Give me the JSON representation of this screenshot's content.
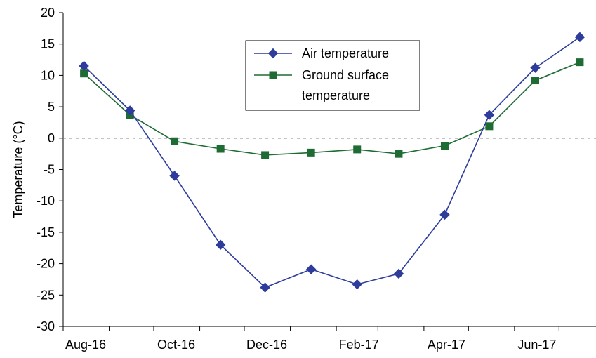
{
  "chart_data": {
    "type": "line",
    "ylabel": "Temperature (°C)",
    "xlabel": "",
    "ylim": [
      -30,
      20
    ],
    "yticks": [
      20,
      15,
      10,
      5,
      0,
      -5,
      -10,
      -15,
      -20,
      -25,
      -30
    ],
    "x_tick_labels": [
      "Aug-16",
      "Oct-16",
      "Dec-16",
      "Feb-17",
      "Apr-17",
      "Jun-17"
    ],
    "zero_reference_line": true,
    "legend_position": "top-center",
    "series": [
      {
        "name": "Air temperature",
        "color": "#2E3C9C",
        "marker": "diamond",
        "points": [
          {
            "x": "2016-08-15",
            "y": 11.5
          },
          {
            "x": "2016-09-15",
            "y": 4.4
          },
          {
            "x": "2016-10-15",
            "y": -6.0
          },
          {
            "x": "2016-11-15",
            "y": -17.0
          },
          {
            "x": "2016-12-15",
            "y": -23.8
          },
          {
            "x": "2017-01-15",
            "y": -20.9
          },
          {
            "x": "2017-02-15",
            "y": -23.3
          },
          {
            "x": "2017-03-15",
            "y": -21.6
          },
          {
            "x": "2017-04-15",
            "y": -12.2
          },
          {
            "x": "2017-05-15",
            "y": 3.7
          },
          {
            "x": "2017-06-15",
            "y": 11.2
          },
          {
            "x": "2017-07-15",
            "y": 16.1
          }
        ]
      },
      {
        "name": "Ground surface temperature",
        "color": "#1E6B34",
        "marker": "square",
        "points": [
          {
            "x": "2016-08-15",
            "y": 10.3
          },
          {
            "x": "2016-09-15",
            "y": 3.7
          },
          {
            "x": "2016-10-15",
            "y": -0.5
          },
          {
            "x": "2016-11-15",
            "y": -1.7
          },
          {
            "x": "2016-12-15",
            "y": -2.7
          },
          {
            "x": "2017-01-15",
            "y": -2.3
          },
          {
            "x": "2017-02-15",
            "y": -1.8
          },
          {
            "x": "2017-03-15",
            "y": -2.5
          },
          {
            "x": "2017-04-15",
            "y": -1.2
          },
          {
            "x": "2017-05-15",
            "y": 1.9
          },
          {
            "x": "2017-06-15",
            "y": 9.2
          },
          {
            "x": "2017-07-15",
            "y": 12.1
          }
        ]
      }
    ],
    "legend_lines": [
      [
        "Air temperature"
      ],
      [
        "Ground surface",
        "temperature"
      ]
    ]
  }
}
